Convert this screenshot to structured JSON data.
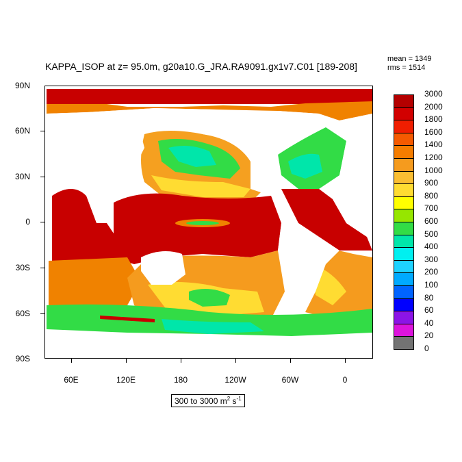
{
  "header": {
    "title": "KAPPA_ISOP at z=  95.0m, g20a10.G_JRA.RA9091.gx1v7.C01 [189-208]",
    "mean": "mean = 1349",
    "rms": "rms = 1514"
  },
  "map": {
    "lat_labels": [
      "90N",
      "60N",
      "30N",
      "0",
      "30S",
      "60S",
      "90S"
    ],
    "lon_labels": [
      "60E",
      "120E",
      "180",
      "120W",
      "60W",
      "0"
    ],
    "land_color": "#ffffff"
  },
  "colorbar": {
    "levels": [
      {
        "label": "3000",
        "color": "#b40000"
      },
      {
        "label": "2000",
        "color": "#d20000"
      },
      {
        "label": "1800",
        "color": "#f01e00"
      },
      {
        "label": "1600",
        "color": "#f55a00"
      },
      {
        "label": "1400",
        "color": "#f57d00"
      },
      {
        "label": "1200",
        "color": "#f59b1e"
      },
      {
        "label": "1000",
        "color": "#fabe32"
      },
      {
        "label": "900",
        "color": "#ffdc32"
      },
      {
        "label": "800",
        "color": "#ffff00"
      },
      {
        "label": "700",
        "color": "#96e600"
      },
      {
        "label": "600",
        "color": "#32dc46"
      },
      {
        "label": "500",
        "color": "#00e6aa"
      },
      {
        "label": "400",
        "color": "#00f0f0"
      },
      {
        "label": "300",
        "color": "#1ed2ff"
      },
      {
        "label": "200",
        "color": "#00aaff"
      },
      {
        "label": "100",
        "color": "#0064ff"
      },
      {
        "label": "80",
        "color": "#0000ff"
      },
      {
        "label": "60",
        "color": "#8c14e6"
      },
      {
        "label": "40",
        "color": "#dc14dc"
      },
      {
        "label": "20",
        "color": "#dcdcdc"
      },
      {
        "label": "0",
        "color": "#737373"
      }
    ]
  },
  "units": {
    "range": "300 to 3000 m",
    "m_exp": "2",
    "s": " s",
    "s_exp": "-1"
  }
}
